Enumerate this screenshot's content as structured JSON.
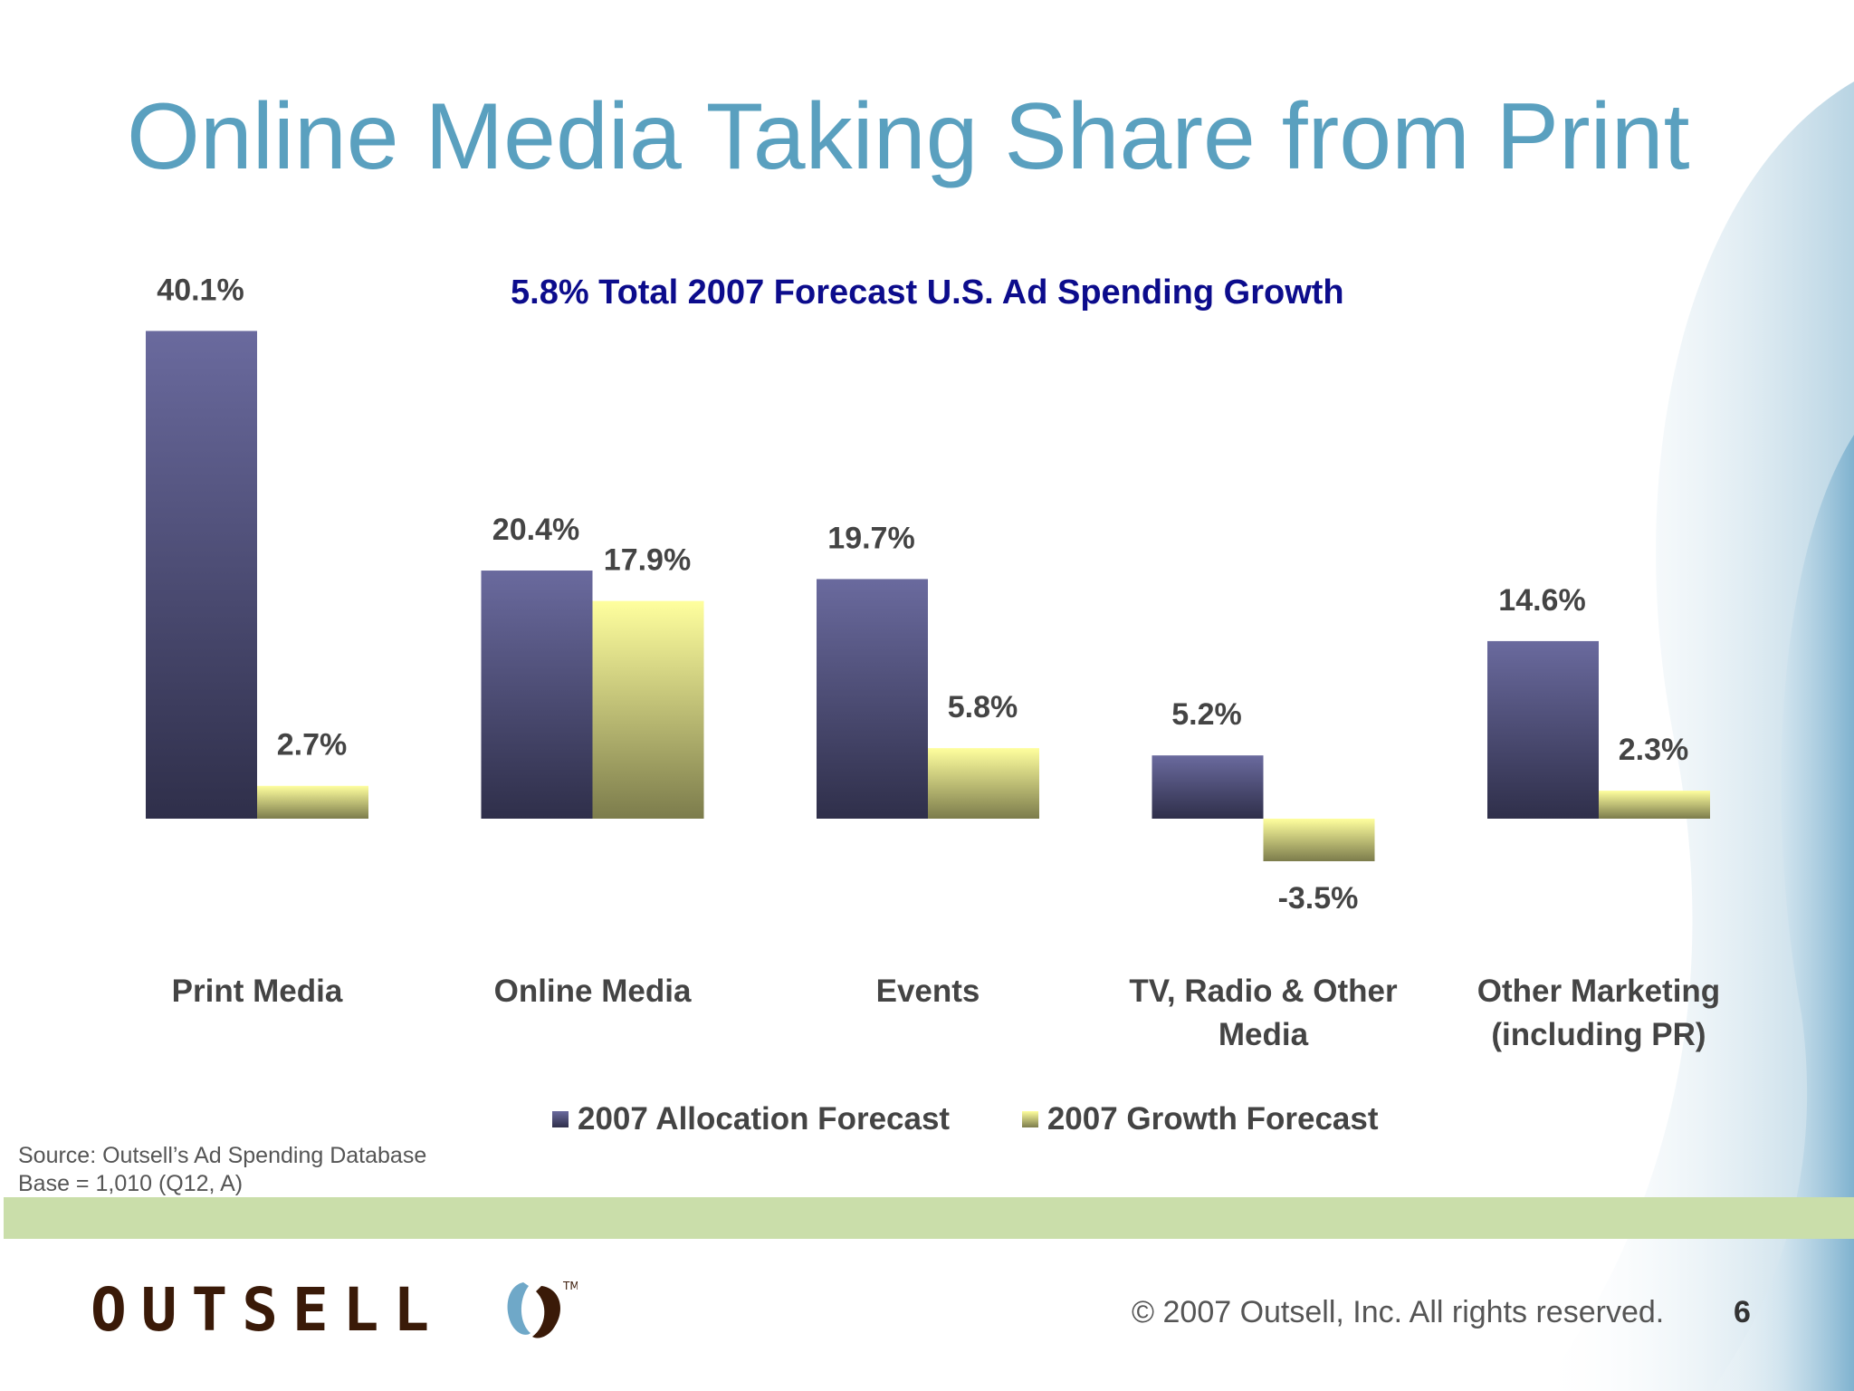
{
  "title": "Online Media Taking Share from Print",
  "chart_data": {
    "type": "bar",
    "title": "5.8% Total 2007 Forecast U.S. Ad Spending Growth",
    "categories": [
      [
        "Print Media"
      ],
      [
        "Online Media"
      ],
      [
        "Events"
      ],
      [
        "TV, Radio & Other",
        "Media"
      ],
      [
        "Other Marketing",
        "(including PR)"
      ]
    ],
    "series": [
      {
        "name": "2007 Allocation Forecast",
        "values": [
          40.1,
          20.4,
          19.7,
          5.2,
          14.6
        ],
        "labels": [
          "40.1%",
          "20.4%",
          "19.7%",
          "5.2%",
          "14.6%"
        ],
        "color_top": "#6a6a9e",
        "color_bottom": "#2f2f4a"
      },
      {
        "name": "2007 Growth Forecast",
        "values": [
          2.7,
          17.9,
          5.8,
          -3.5,
          2.3
        ],
        "labels": [
          "2.7%",
          "17.9%",
          "5.8%",
          "-3.5%",
          "2.3%"
        ],
        "color_top": "#ffff9e",
        "color_bottom": "#7c7c4c"
      }
    ],
    "ylim": [
      -10,
      45
    ],
    "grid": false,
    "legend_position": "bottom"
  },
  "source": {
    "line1": "Source:  Outsell’s Ad Spending Database",
    "line2": "Base = 1,010 (Q12, A)"
  },
  "footer": {
    "logo_text": "OUTSELL",
    "copyright": "© 2007 Outsell, Inc. All rights reserved.",
    "page_number": "6"
  },
  "colors": {
    "title": "#5aa0bf",
    "chart_title": "#0c0c8c",
    "band": "#cadeaa",
    "accent_blue": "#6fa8c8"
  }
}
